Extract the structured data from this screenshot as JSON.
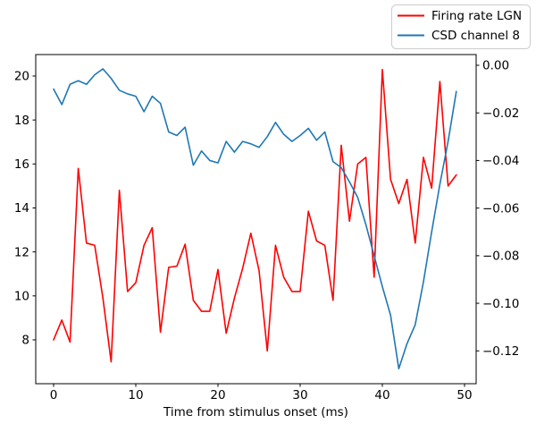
{
  "figure": {
    "background": "#ffffff",
    "frame_color": "#000000",
    "text_color": "#000000"
  },
  "chart_data": {
    "type": "line",
    "title": "",
    "xlabel": "Time from stimulus onset (ms)",
    "ylabel_left": "",
    "ylabel_right": "",
    "grid": false,
    "legend": {
      "position": "upper-right-above-axes",
      "border_color": "#cccccc",
      "labels": [
        "Firing rate LGN",
        "CSD channel 8"
      ]
    },
    "x": [
      0,
      1,
      2,
      3,
      4,
      5,
      6,
      7,
      8,
      9,
      10,
      11,
      12,
      13,
      14,
      15,
      16,
      17,
      18,
      19,
      20,
      21,
      22,
      23,
      24,
      25,
      26,
      27,
      28,
      29,
      30,
      31,
      32,
      33,
      34,
      35,
      36,
      37,
      38,
      39,
      40,
      41,
      42,
      43,
      44,
      45,
      46,
      47,
      48,
      49
    ],
    "series": [
      {
        "name": "Firing rate LGN",
        "color": "#ff0000",
        "axis": "left",
        "values": [
          8.0,
          8.9,
          7.9,
          15.8,
          12.4,
          12.3,
          9.9,
          7.0,
          14.8,
          10.2,
          10.6,
          12.3,
          13.1,
          8.35,
          11.3,
          11.35,
          12.35,
          9.8,
          9.3,
          9.3,
          11.2,
          8.3,
          9.9,
          11.25,
          12.85,
          11.15,
          7.5,
          12.3,
          10.85,
          10.2,
          10.2,
          13.85,
          12.5,
          12.3,
          9.8,
          16.85,
          13.4,
          16.0,
          16.3,
          10.85,
          20.3,
          15.3,
          14.2,
          15.3,
          12.4,
          16.3,
          14.9,
          19.75,
          15.0,
          15.5
        ]
      },
      {
        "name": "CSD channel 8",
        "color": "#1f77b4",
        "axis": "right",
        "values": [
          -0.01,
          -0.0165,
          -0.008,
          -0.0065,
          -0.008,
          -0.004,
          -0.0015,
          -0.0055,
          -0.0105,
          -0.012,
          -0.013,
          -0.0195,
          -0.013,
          -0.016,
          -0.028,
          -0.0295,
          -0.026,
          -0.042,
          -0.036,
          -0.04,
          -0.041,
          -0.032,
          -0.0365,
          -0.032,
          -0.033,
          -0.0345,
          -0.03,
          -0.024,
          -0.029,
          -0.032,
          -0.0295,
          -0.0265,
          -0.0315,
          -0.028,
          -0.0405,
          -0.043,
          -0.049,
          -0.0555,
          -0.067,
          -0.08,
          -0.093,
          -0.105,
          -0.1275,
          -0.117,
          -0.109,
          -0.091,
          -0.07,
          -0.05,
          -0.032,
          -0.011
        ]
      }
    ],
    "x_axis": {
      "ticks": [
        0,
        10,
        20,
        30,
        40,
        50
      ],
      "tick_labels": [
        "0",
        "10",
        "20",
        "30",
        "40",
        "50"
      ],
      "lim": [
        -2.174,
        51.413
      ]
    },
    "y_axis_left": {
      "ticks": [
        8,
        10,
        12,
        14,
        16,
        18,
        20
      ],
      "tick_labels": [
        "8",
        "10",
        "12",
        "14",
        "16",
        "18",
        "20"
      ],
      "lim": [
        6.006,
        20.976
      ]
    },
    "y_axis_right": {
      "ticks": [
        0.0,
        -0.02,
        -0.04,
        -0.06,
        -0.08,
        -0.1,
        -0.12
      ],
      "tick_labels": [
        "0.00",
        "−0.02",
        "−0.04",
        "−0.06",
        "−0.08",
        "−0.10",
        "−0.12"
      ],
      "lim": [
        -0.1338,
        0.00451
      ]
    }
  }
}
